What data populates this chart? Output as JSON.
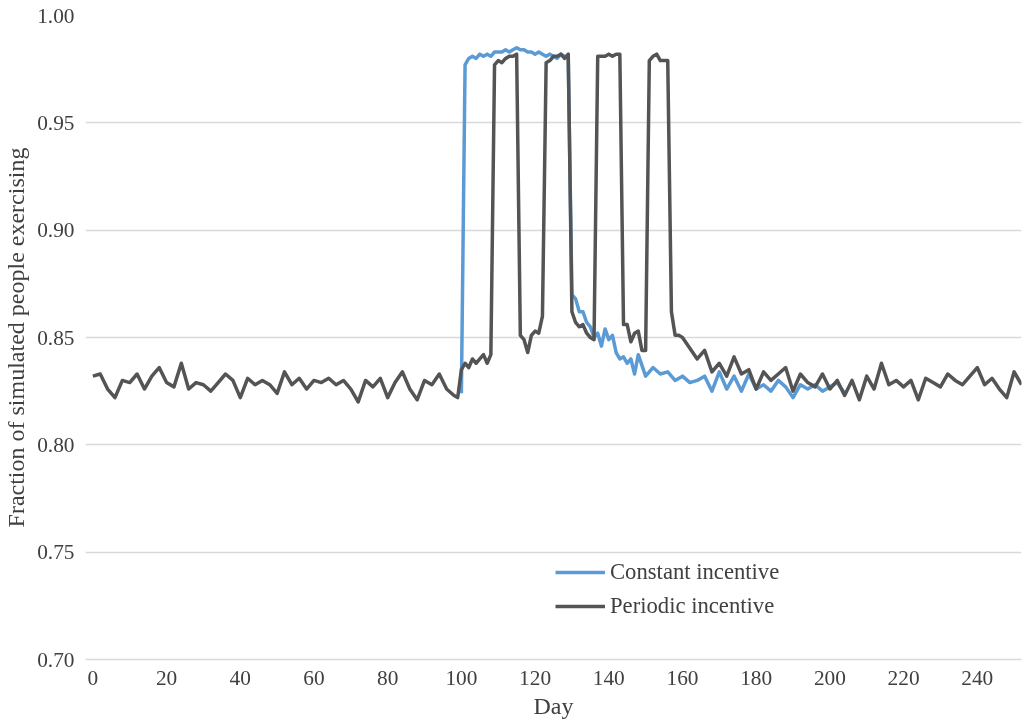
{
  "chart_data": {
    "type": "line",
    "xlabel": "Day",
    "ylabel": "Fraction of simulated people exercising",
    "xlim": [
      -2,
      252
    ],
    "xticks": [
      0,
      20,
      40,
      60,
      80,
      100,
      120,
      140,
      160,
      180,
      200,
      220,
      240
    ],
    "ylim": [
      0.7,
      1.0
    ],
    "yticks": [
      {
        "value": 0.7,
        "label": "0.70"
      },
      {
        "value": 0.75,
        "label": "0.75"
      },
      {
        "value": 0.8,
        "label": "0.80"
      },
      {
        "value": 0.85,
        "label": "0.85"
      },
      {
        "value": 0.9,
        "label": "0.90"
      },
      {
        "value": 0.95,
        "label": "0.95"
      },
      {
        "value": 1.0,
        "label": "1.00"
      }
    ],
    "grid": "y",
    "legend": "bottom",
    "marker": "none",
    "line_style": "solid",
    "series": [
      {
        "name": "Constant incentive",
        "color": "#5b9bd5",
        "x": [
          100,
          101,
          102,
          103,
          104,
          105,
          106,
          107,
          108,
          109,
          110,
          111,
          112,
          113,
          114,
          115,
          116,
          117,
          118,
          119,
          120,
          121,
          122,
          123,
          124,
          125,
          126,
          127,
          128,
          129,
          130,
          131,
          132,
          133,
          134,
          135,
          136,
          137,
          138,
          139,
          140,
          141,
          142,
          143,
          144,
          145,
          146,
          147,
          148,
          149,
          150,
          152,
          154,
          156,
          158,
          160,
          162,
          164,
          166,
          168,
          170,
          172,
          174,
          176,
          178,
          180,
          182,
          184,
          186,
          188,
          190,
          192,
          194,
          196,
          198,
          200,
          202,
          204
        ],
        "values": [
          0.824,
          0.977,
          0.98,
          0.981,
          0.98,
          0.982,
          0.981,
          0.982,
          0.981,
          0.983,
          0.983,
          0.983,
          0.984,
          0.983,
          0.984,
          0.985,
          0.984,
          0.984,
          0.983,
          0.983,
          0.982,
          0.983,
          0.982,
          0.981,
          0.982,
          0.981,
          0.98,
          0.982,
          0.981,
          0.98,
          0.87,
          0.868,
          0.862,
          0.862,
          0.857,
          0.855,
          0.85,
          0.852,
          0.846,
          0.854,
          0.849,
          0.851,
          0.843,
          0.84,
          0.841,
          0.838,
          0.84,
          0.833,
          0.842,
          0.837,
          0.832,
          0.836,
          0.833,
          0.834,
          0.83,
          0.832,
          0.829,
          0.83,
          0.832,
          0.825,
          0.834,
          0.826,
          0.832,
          0.825,
          0.833,
          0.826,
          0.828,
          0.825,
          0.83,
          0.827,
          0.822,
          0.828,
          0.826,
          0.828,
          0.825,
          0.827,
          0.829,
          0.824
        ]
      },
      {
        "name": "Periodic incentive",
        "color": "#545454",
        "x": [
          0,
          2,
          4,
          6,
          8,
          10,
          12,
          14,
          16,
          18,
          20,
          22,
          24,
          26,
          28,
          30,
          32,
          34,
          36,
          38,
          40,
          42,
          44,
          46,
          48,
          50,
          52,
          54,
          56,
          58,
          60,
          62,
          64,
          66,
          68,
          70,
          72,
          74,
          76,
          78,
          80,
          82,
          84,
          86,
          88,
          90,
          92,
          94,
          96,
          98,
          99,
          100,
          101,
          102,
          103,
          104,
          105,
          106,
          107,
          108,
          109,
          110,
          111,
          112,
          113,
          114,
          115,
          116,
          117,
          118,
          119,
          120,
          121,
          122,
          123,
          124,
          125,
          126,
          127,
          128,
          129,
          130,
          131,
          132,
          133,
          134,
          135,
          136,
          137,
          138,
          139,
          140,
          141,
          142,
          143,
          144,
          145,
          146,
          147,
          148,
          149,
          150,
          151,
          152,
          153,
          154,
          155,
          156,
          157,
          158,
          159,
          160,
          162,
          164,
          166,
          168,
          170,
          172,
          174,
          176,
          178,
          180,
          182,
          184,
          186,
          188,
          190,
          192,
          194,
          196,
          198,
          200,
          202,
          204,
          206,
          208,
          210,
          212,
          214,
          216,
          218,
          220,
          222,
          224,
          226,
          228,
          230,
          232,
          234,
          236,
          238,
          240,
          242,
          244,
          246,
          248,
          250,
          252
        ],
        "values": [
          0.832,
          0.833,
          0.826,
          0.822,
          0.83,
          0.829,
          0.833,
          0.826,
          0.832,
          0.836,
          0.829,
          0.827,
          0.838,
          0.826,
          0.829,
          0.828,
          0.825,
          0.829,
          0.833,
          0.83,
          0.822,
          0.831,
          0.828,
          0.83,
          0.828,
          0.824,
          0.834,
          0.828,
          0.831,
          0.826,
          0.83,
          0.829,
          0.831,
          0.828,
          0.83,
          0.826,
          0.82,
          0.83,
          0.827,
          0.831,
          0.822,
          0.829,
          0.834,
          0.826,
          0.821,
          0.83,
          0.828,
          0.833,
          0.826,
          0.823,
          0.822,
          0.835,
          0.838,
          0.836,
          0.84,
          0.838,
          0.84,
          0.842,
          0.838,
          0.842,
          0.977,
          0.979,
          0.978,
          0.98,
          0.981,
          0.981,
          0.982,
          0.851,
          0.849,
          0.843,
          0.851,
          0.853,
          0.852,
          0.86,
          0.978,
          0.979,
          0.981,
          0.981,
          0.982,
          0.98,
          0.982,
          0.862,
          0.857,
          0.855,
          0.856,
          0.852,
          0.85,
          0.849,
          0.981,
          0.981,
          0.981,
          0.982,
          0.981,
          0.982,
          0.982,
          0.856,
          0.856,
          0.848,
          0.852,
          0.853,
          0.844,
          0.844,
          0.979,
          0.981,
          0.982,
          0.979,
          0.979,
          0.979,
          0.862,
          0.851,
          0.851,
          0.85,
          0.845,
          0.84,
          0.844,
          0.834,
          0.838,
          0.832,
          0.841,
          0.833,
          0.835,
          0.826,
          0.834,
          0.83,
          0.833,
          0.836,
          0.825,
          0.833,
          0.829,
          0.827,
          0.833,
          0.826,
          0.83,
          0.823,
          0.83,
          0.821,
          0.832,
          0.826,
          0.838,
          0.828,
          0.83,
          0.827,
          0.83,
          0.821,
          0.831,
          0.829,
          0.827,
          0.833,
          0.83,
          0.828,
          0.832,
          0.836,
          0.828,
          0.831,
          0.826,
          0.822,
          0.834,
          0.828
        ]
      }
    ]
  }
}
